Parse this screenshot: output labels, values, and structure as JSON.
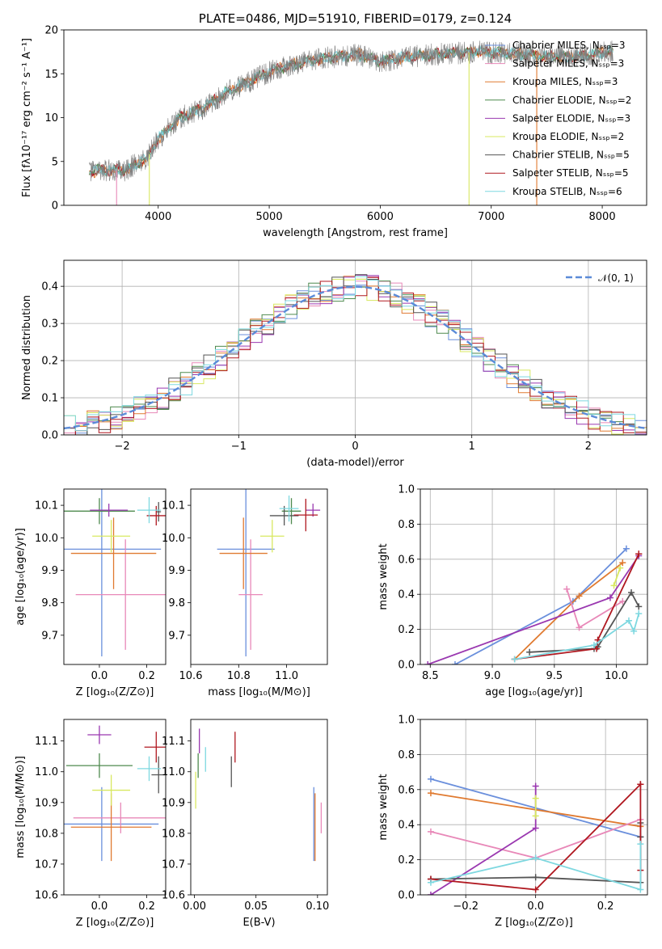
{
  "colors": {
    "Chabrier MILES": "#6a8fdc",
    "Salpeter MILES": "#e888b8",
    "Kroupa MILES": "#e07a30",
    "Chabrier ELODIE": "#4e8a4e",
    "Salpeter ELODIE": "#9a38b0",
    "Kroupa ELODIE": "#d8e860",
    "Chabrier STELIB": "#555555",
    "Salpeter STELIB": "#b01820",
    "Kroupa STELIB": "#7ed8e0",
    "gaussian": "#5b8bd8",
    "grid": "#b0b0b0",
    "spectrum": "#808080"
  },
  "chart_data": [
    {
      "type": "line",
      "panel": "spectrum",
      "title": "PLATE=0486, MJD=51910, FIBERID=0179, z=0.124",
      "xlabel": "wavelength [Angstrom, rest frame]",
      "ylabel": "Flux [fλ10⁻¹⁷ erg cm⁻² s⁻¹ A⁻¹]",
      "xlim": [
        3150,
        8400
      ],
      "ylim": [
        0,
        20
      ],
      "xticks": [
        4000,
        5000,
        6000,
        7000,
        8000
      ],
      "yticks": [
        0,
        5,
        10,
        15,
        20
      ],
      "continuum": {
        "x": [
          3380,
          3500,
          3700,
          3900,
          4000,
          4200,
          4400,
          4600,
          4800,
          5000,
          5200,
          5500,
          5800,
          6000,
          6300,
          6600,
          6900,
          7200,
          7500,
          7800,
          8100
        ],
        "y": [
          3.8,
          4.0,
          4.0,
          5.4,
          7.6,
          10.0,
          11.0,
          12.8,
          14.0,
          15.2,
          16.0,
          16.8,
          17.2,
          16.4,
          17.0,
          17.3,
          17.5,
          17.3,
          17.0,
          17.0,
          17.6
        ]
      },
      "spike_lines": [
        {
          "x": 3625,
          "series": "Salpeter MILES"
        },
        {
          "x": 3920,
          "series": "Kroupa ELODIE"
        },
        {
          "x": 6800,
          "series": "Kroupa ELODIE"
        },
        {
          "x": 7410,
          "series": "Kroupa MILES"
        }
      ],
      "legend": {
        "placement": "upper right",
        "entries": [
          "Chabrier MILES, Nₛₛₚ=3",
          "Salpeter MILES, Nₛₛₚ=3",
          "Kroupa MILES, Nₛₛₚ=3",
          "Chabrier ELODIE, Nₛₛₚ=2",
          "Salpeter ELODIE, Nₛₛₚ=3",
          "Kroupa ELODIE, Nₛₛₚ=2",
          "Chabrier STELIB, Nₛₛₚ=5",
          "Salpeter STELIB, Nₛₛₚ=5",
          "Kroupa STELIB, Nₛₛₚ=6"
        ],
        "series": [
          "Chabrier MILES",
          "Salpeter MILES",
          "Kroupa MILES",
          "Chabrier ELODIE",
          "Salpeter ELODIE",
          "Kroupa ELODIE",
          "Chabrier STELIB",
          "Salpeter STELIB",
          "Kroupa STELIB"
        ]
      }
    },
    {
      "type": "histogram",
      "panel": "residuals",
      "xlabel": "(data-model)/error",
      "ylabel": "Normed distribution",
      "xlim": [
        -2.5,
        2.5
      ],
      "ylim": [
        0,
        0.47
      ],
      "xticks": [
        -2,
        -1,
        0,
        1,
        2
      ],
      "yticks": [
        0.0,
        0.1,
        0.2,
        0.3,
        0.4
      ],
      "grid": true,
      "bin_width": 0.1,
      "legend": {
        "placement": "upper right",
        "entries": [
          "𝒩(0, 1)"
        ]
      },
      "gaussian": {
        "mean": 0,
        "sigma": 1
      }
    },
    {
      "type": "scatter",
      "panel": "age_vs_Z",
      "xlabel": "Z [log₁₀(Z/Z⊙)]",
      "ylabel": "age  [log₁₀(age/yr)]",
      "xlim": [
        -0.15,
        0.28
      ],
      "ylim": [
        9.61,
        10.15
      ],
      "xticks": [
        0.0,
        0.2
      ],
      "yticks": [
        9.7,
        9.8,
        9.9,
        10.0,
        10.1
      ],
      "points": [
        {
          "series": "Chabrier MILES",
          "x": 0.01,
          "y": 9.965,
          "xerr": 0.25,
          "yerr": 0.33
        },
        {
          "series": "Salpeter MILES",
          "x": 0.11,
          "y": 9.825,
          "xerr": 0.21,
          "yerr": 0.17
        },
        {
          "series": "Kroupa MILES",
          "x": 0.06,
          "y": 9.952,
          "xerr": 0.18,
          "yerr": 0.11
        },
        {
          "series": "Chabrier ELODIE",
          "x": 0.0,
          "y": 10.082,
          "xerr": 0.15,
          "yerr": 0.04
        },
        {
          "series": "Salpeter ELODIE",
          "x": 0.04,
          "y": 10.085,
          "xerr": 0.08,
          "yerr": 0.02
        },
        {
          "series": "Kroupa ELODIE",
          "x": 0.05,
          "y": 10.005,
          "xerr": 0.08,
          "yerr": 0.05
        },
        {
          "series": "Chabrier STELIB",
          "x": 0.25,
          "y": 10.08,
          "xerr": 0.01,
          "yerr": 0.03
        },
        {
          "series": "Salpeter STELIB",
          "x": 0.24,
          "y": 10.068,
          "xerr": 0.04,
          "yerr": 0.03
        },
        {
          "series": "Kroupa STELIB",
          "x": 0.21,
          "y": 10.085,
          "xerr": 0.05,
          "yerr": 0.04
        }
      ]
    },
    {
      "type": "scatter",
      "panel": "age_vs_mass",
      "xlabel": "mass [log₁₀(M/M⊙)]",
      "ylabel": "",
      "xlim": [
        10.6,
        11.17
      ],
      "ylim": [
        9.61,
        10.15
      ],
      "xticks": [
        10.6,
        10.8,
        11.0
      ],
      "yticks": [
        9.7,
        9.8,
        9.9,
        10.0,
        10.1
      ],
      "points": [
        {
          "series": "Chabrier MILES",
          "x": 10.83,
          "y": 9.965,
          "xerr": 0.12,
          "yerr": 0.33
        },
        {
          "series": "Salpeter MILES",
          "x": 10.85,
          "y": 9.825,
          "xerr": 0.05,
          "yerr": 0.17
        },
        {
          "series": "Kroupa MILES",
          "x": 10.82,
          "y": 9.952,
          "xerr": 0.1,
          "yerr": 0.11
        },
        {
          "series": "Chabrier ELODIE",
          "x": 11.02,
          "y": 10.082,
          "xerr": 0.04,
          "yerr": 0.04
        },
        {
          "series": "Salpeter ELODIE",
          "x": 11.11,
          "y": 10.085,
          "xerr": 0.03,
          "yerr": 0.02
        },
        {
          "series": "Kroupa ELODIE",
          "x": 10.94,
          "y": 10.005,
          "xerr": 0.05,
          "yerr": 0.05
        },
        {
          "series": "Chabrier STELIB",
          "x": 10.99,
          "y": 10.068,
          "xerr": 0.06,
          "yerr": 0.03
        },
        {
          "series": "Salpeter STELIB",
          "x": 11.08,
          "y": 10.07,
          "xerr": 0.05,
          "yerr": 0.05
        },
        {
          "series": "Kroupa STELIB",
          "x": 11.01,
          "y": 10.09,
          "xerr": 0.04,
          "yerr": 0.04
        }
      ]
    },
    {
      "type": "line",
      "panel": "mass_weight_vs_age",
      "xlabel": "age  [log₁₀(age/yr)]",
      "ylabel": "mass weight",
      "xlim": [
        8.42,
        10.25
      ],
      "ylim": [
        0,
        1
      ],
      "xticks": [
        8.5,
        9.0,
        9.5,
        10.0
      ],
      "yticks": [
        0.0,
        0.2,
        0.4,
        0.6,
        0.8,
        1.0
      ],
      "grid": true,
      "series": [
        {
          "series": "Chabrier MILES",
          "x": [
            8.7,
            9.65,
            10.08
          ],
          "y": [
            0.0,
            0.36,
            0.66
          ]
        },
        {
          "series": "Kroupa MILES",
          "x": [
            9.18,
            9.7,
            10.05
          ],
          "y": [
            0.03,
            0.39,
            0.58
          ]
        },
        {
          "series": "Salpeter MILES",
          "x": [
            9.6,
            9.7,
            10.05
          ],
          "y": [
            0.43,
            0.21,
            0.36
          ]
        },
        {
          "series": "Salpeter ELODIE",
          "x": [
            8.48,
            9.95,
            10.18
          ],
          "y": [
            0.0,
            0.38,
            0.62
          ]
        },
        {
          "series": "Kroupa ELODIE",
          "x": [
            9.98,
            10.03
          ],
          "y": [
            0.45,
            0.55
          ]
        },
        {
          "series": "Chabrier STELIB",
          "x": [
            9.3,
            9.82,
            9.85,
            10.12,
            10.18
          ],
          "y": [
            0.07,
            0.09,
            0.1,
            0.41,
            0.33
          ]
        },
        {
          "series": "Salpeter STELIB",
          "x": [
            9.18,
            9.84,
            9.85,
            10.18,
            10.18
          ],
          "y": [
            0.03,
            0.09,
            0.14,
            0.63,
            0.63
          ]
        },
        {
          "series": "Kroupa STELIB",
          "x": [
            9.18,
            9.82,
            10.1,
            10.14,
            10.18
          ],
          "y": [
            0.03,
            0.11,
            0.25,
            0.19,
            0.29
          ]
        }
      ]
    },
    {
      "type": "scatter",
      "panel": "mass_vs_Z",
      "xlabel": "Z [log₁₀(Z/Z⊙)]",
      "ylabel": "mass [log₁₀(M/M⊙)]",
      "xlim": [
        -0.15,
        0.28
      ],
      "ylim": [
        10.6,
        11.17
      ],
      "xticks": [
        0.0,
        0.2
      ],
      "yticks": [
        10.6,
        10.7,
        10.8,
        10.9,
        11.0,
        11.1
      ],
      "points": [
        {
          "series": "Chabrier MILES",
          "x": 0.01,
          "y": 10.83,
          "xerr": 0.24,
          "yerr": 0.12
        },
        {
          "series": "Salpeter MILES",
          "x": 0.09,
          "y": 10.85,
          "xerr": 0.2,
          "yerr": 0.05
        },
        {
          "series": "Kroupa MILES",
          "x": 0.05,
          "y": 10.82,
          "xerr": 0.17,
          "yerr": 0.11
        },
        {
          "series": "Chabrier ELODIE",
          "x": 0.0,
          "y": 11.02,
          "xerr": 0.14,
          "yerr": 0.04
        },
        {
          "series": "Salpeter ELODIE",
          "x": 0.0,
          "y": 11.12,
          "xerr": 0.05,
          "yerr": 0.03
        },
        {
          "series": "Kroupa ELODIE",
          "x": 0.05,
          "y": 10.94,
          "xerr": 0.08,
          "yerr": 0.05
        },
        {
          "series": "Chabrier STELIB",
          "x": 0.25,
          "y": 10.99,
          "xerr": 0.03,
          "yerr": 0.06
        },
        {
          "series": "Salpeter STELIB",
          "x": 0.24,
          "y": 11.08,
          "xerr": 0.05,
          "yerr": 0.05
        },
        {
          "series": "Kroupa STELIB",
          "x": 0.21,
          "y": 11.01,
          "xerr": 0.05,
          "yerr": 0.04
        }
      ]
    },
    {
      "type": "scatter",
      "panel": "mass_vs_ebv",
      "xlabel": "E(B-V)",
      "ylabel": "",
      "xlim": [
        -0.003,
        0.108
      ],
      "ylim": [
        10.6,
        11.17
      ],
      "xticks": [
        0.0,
        0.05,
        0.1
      ],
      "yticks": [
        10.6,
        10.7,
        10.8,
        10.9,
        11.0,
        11.1
      ],
      "points": [
        {
          "series": "Chabrier MILES",
          "x": 0.097,
          "y": 10.83,
          "xerr": 0.0,
          "yerr": 0.12
        },
        {
          "series": "Salpeter MILES",
          "x": 0.103,
          "y": 10.85,
          "xerr": 0.0,
          "yerr": 0.05
        },
        {
          "series": "Kroupa MILES",
          "x": 0.098,
          "y": 10.82,
          "xerr": 0.0,
          "yerr": 0.11
        },
        {
          "series": "Chabrier ELODIE",
          "x": 0.003,
          "y": 11.02,
          "xerr": 0.0,
          "yerr": 0.04
        },
        {
          "series": "Salpeter ELODIE",
          "x": 0.004,
          "y": 11.1,
          "xerr": 0.0,
          "yerr": 0.04
        },
        {
          "series": "Kroupa ELODIE",
          "x": 0.001,
          "y": 10.94,
          "xerr": 0.0,
          "yerr": 0.06
        },
        {
          "series": "Chabrier STELIB",
          "x": 0.03,
          "y": 11.0,
          "xerr": 0.0,
          "yerr": 0.05
        },
        {
          "series": "Salpeter STELIB",
          "x": 0.033,
          "y": 11.08,
          "xerr": 0.0,
          "yerr": 0.05
        },
        {
          "series": "Kroupa STELIB",
          "x": 0.009,
          "y": 11.04,
          "xerr": 0.0,
          "yerr": 0.04
        }
      ]
    },
    {
      "type": "line",
      "panel": "mass_weight_vs_Z",
      "xlabel": "Z [log₁₀(Z/Z⊙)]",
      "ylabel": "mass weight",
      "xlim": [
        -0.33,
        0.32
      ],
      "ylim": [
        0,
        1
      ],
      "xticks": [
        -0.2,
        0.0,
        0.2
      ],
      "yticks": [
        0.0,
        0.2,
        0.4,
        0.6,
        0.8,
        1.0
      ],
      "grid": true,
      "series": [
        {
          "series": "Chabrier MILES",
          "x": [
            -0.3,
            0.3
          ],
          "y": [
            0.66,
            0.33
          ]
        },
        {
          "series": "Kroupa MILES",
          "x": [
            -0.3,
            0.3
          ],
          "y": [
            0.58,
            0.39
          ]
        },
        {
          "series": "Salpeter MILES",
          "x": [
            -0.3,
            0.0,
            0.3
          ],
          "y": [
            0.36,
            0.21,
            0.43
          ]
        },
        {
          "series": "Salpeter ELODIE",
          "x": [
            -0.3,
            0.0,
            0.0
          ],
          "y": [
            0.0,
            0.38,
            0.62
          ]
        },
        {
          "series": "Kroupa ELODIE",
          "x": [
            0.0,
            0.0
          ],
          "y": [
            0.45,
            0.55
          ]
        },
        {
          "series": "Chabrier STELIB",
          "x": [
            -0.3,
            0.0,
            0.3,
            0.3,
            0.3
          ],
          "y": [
            0.09,
            0.1,
            0.07,
            0.33,
            0.41
          ]
        },
        {
          "series": "Salpeter STELIB",
          "x": [
            -0.3,
            0.0,
            0.3,
            0.3,
            0.3
          ],
          "y": [
            0.09,
            0.03,
            0.63,
            0.14,
            0.63
          ]
        },
        {
          "series": "Kroupa STELIB",
          "x": [
            -0.3,
            0.0,
            0.3,
            0.3
          ],
          "y": [
            0.07,
            0.21,
            0.03,
            0.29
          ]
        }
      ]
    }
  ]
}
